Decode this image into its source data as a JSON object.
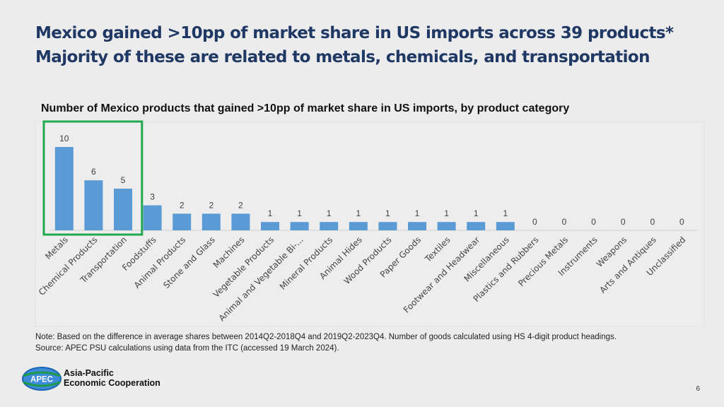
{
  "title": "Mexico gained >10pp of market share in US imports across 39 products*",
  "subtitle": "Majority of these are related to metals, chemicals, and transportation",
  "chart_data": {
    "type": "bar",
    "title": "Number of Mexico products that gained >10pp of market share in US imports, by product category",
    "categories": [
      "Metals",
      "Chemical Products",
      "Transportation",
      "Foodstuffs",
      "Animal Products",
      "Stone and Glass",
      "Machines",
      "Vegetable Products",
      "Animal and Vegetable Bi-...",
      "Mineral Products",
      "Animal Hides",
      "Wood Products",
      "Paper Goods",
      "Textiles",
      "Footwear and Headwear",
      "Miscellaneous",
      "Plastics and Rubbers",
      "Precious Metals",
      "Instruments",
      "Weapons",
      "Arts and Antiques",
      "Unclassified"
    ],
    "values": [
      10,
      6,
      5,
      3,
      2,
      2,
      2,
      1,
      1,
      1,
      1,
      1,
      1,
      1,
      1,
      1,
      0,
      0,
      0,
      0,
      0,
      0
    ],
    "data_labels": true,
    "highlight": {
      "categories": [
        "Metals",
        "Chemical Products",
        "Transportation"
      ],
      "color": "#21a94f"
    },
    "bar_color": "#5b9bd5",
    "xlabel": "",
    "ylabel": "",
    "ylim": [
      0,
      10
    ],
    "grid": false,
    "legend": "none"
  },
  "note": "Note: Based on the difference in average shares between 2014Q2-2018Q4 and 2019Q2-2023Q4. Number of goods calculated using HS 4-digit product headings.",
  "source": "Source: APEC PSU calculations using data from the ITC (accessed 19 March 2024).",
  "logo": {
    "badge": "APEC",
    "line1": "Asia-Pacific",
    "line2": "Economic Cooperation"
  },
  "page_number": "6"
}
